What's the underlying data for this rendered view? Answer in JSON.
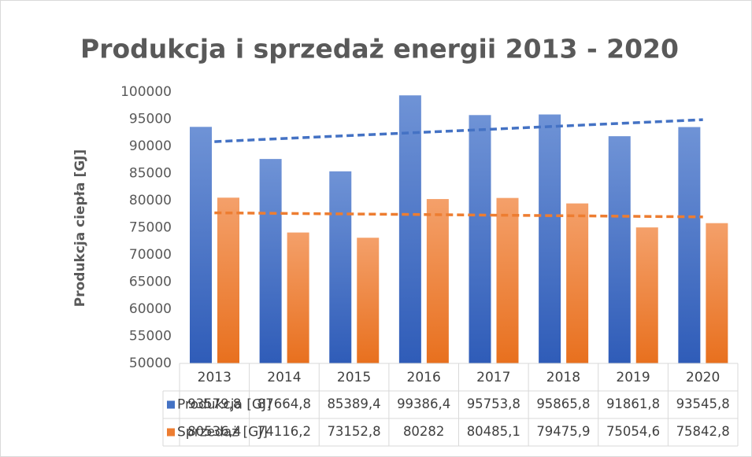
{
  "chart_data": {
    "type": "bar",
    "title": "Produkcja i sprzedaż energii 2013 - 2020",
    "y_axis_label": "Produkcja ciepła [GJ]",
    "categories": [
      "2013",
      "2014",
      "2015",
      "2016",
      "2017",
      "2018",
      "2019",
      "2020"
    ],
    "series": [
      {
        "name": "Produkcja [GJ]",
        "color": "#4472c4",
        "trendline": "linear",
        "values": [
          93579.8,
          87664.8,
          85389.4,
          99386.4,
          95753.8,
          95865.8,
          91861.8,
          93545.8
        ],
        "value_labels": [
          "93579,8",
          "87664,8",
          "85389,4",
          "99386,4",
          "95753,8",
          "95865,8",
          "91861,8",
          "93545,8"
        ]
      },
      {
        "name": "Sprzedaż [GJ]",
        "color": "#ed7d31",
        "trendline": "linear",
        "values": [
          80536.4,
          74116.2,
          73152.8,
          80282,
          80485.1,
          79475.9,
          75054.6,
          75842.8
        ],
        "value_labels": [
          "80536,4",
          "74116,2",
          "73152,8",
          "80282",
          "80485,1",
          "79475,9",
          "75054,6",
          "75842,8"
        ]
      }
    ],
    "ylim": [
      50000,
      100000
    ],
    "yticks": [
      50000,
      55000,
      60000,
      65000,
      70000,
      75000,
      80000,
      85000,
      90000,
      95000,
      100000
    ],
    "data_table": true
  }
}
